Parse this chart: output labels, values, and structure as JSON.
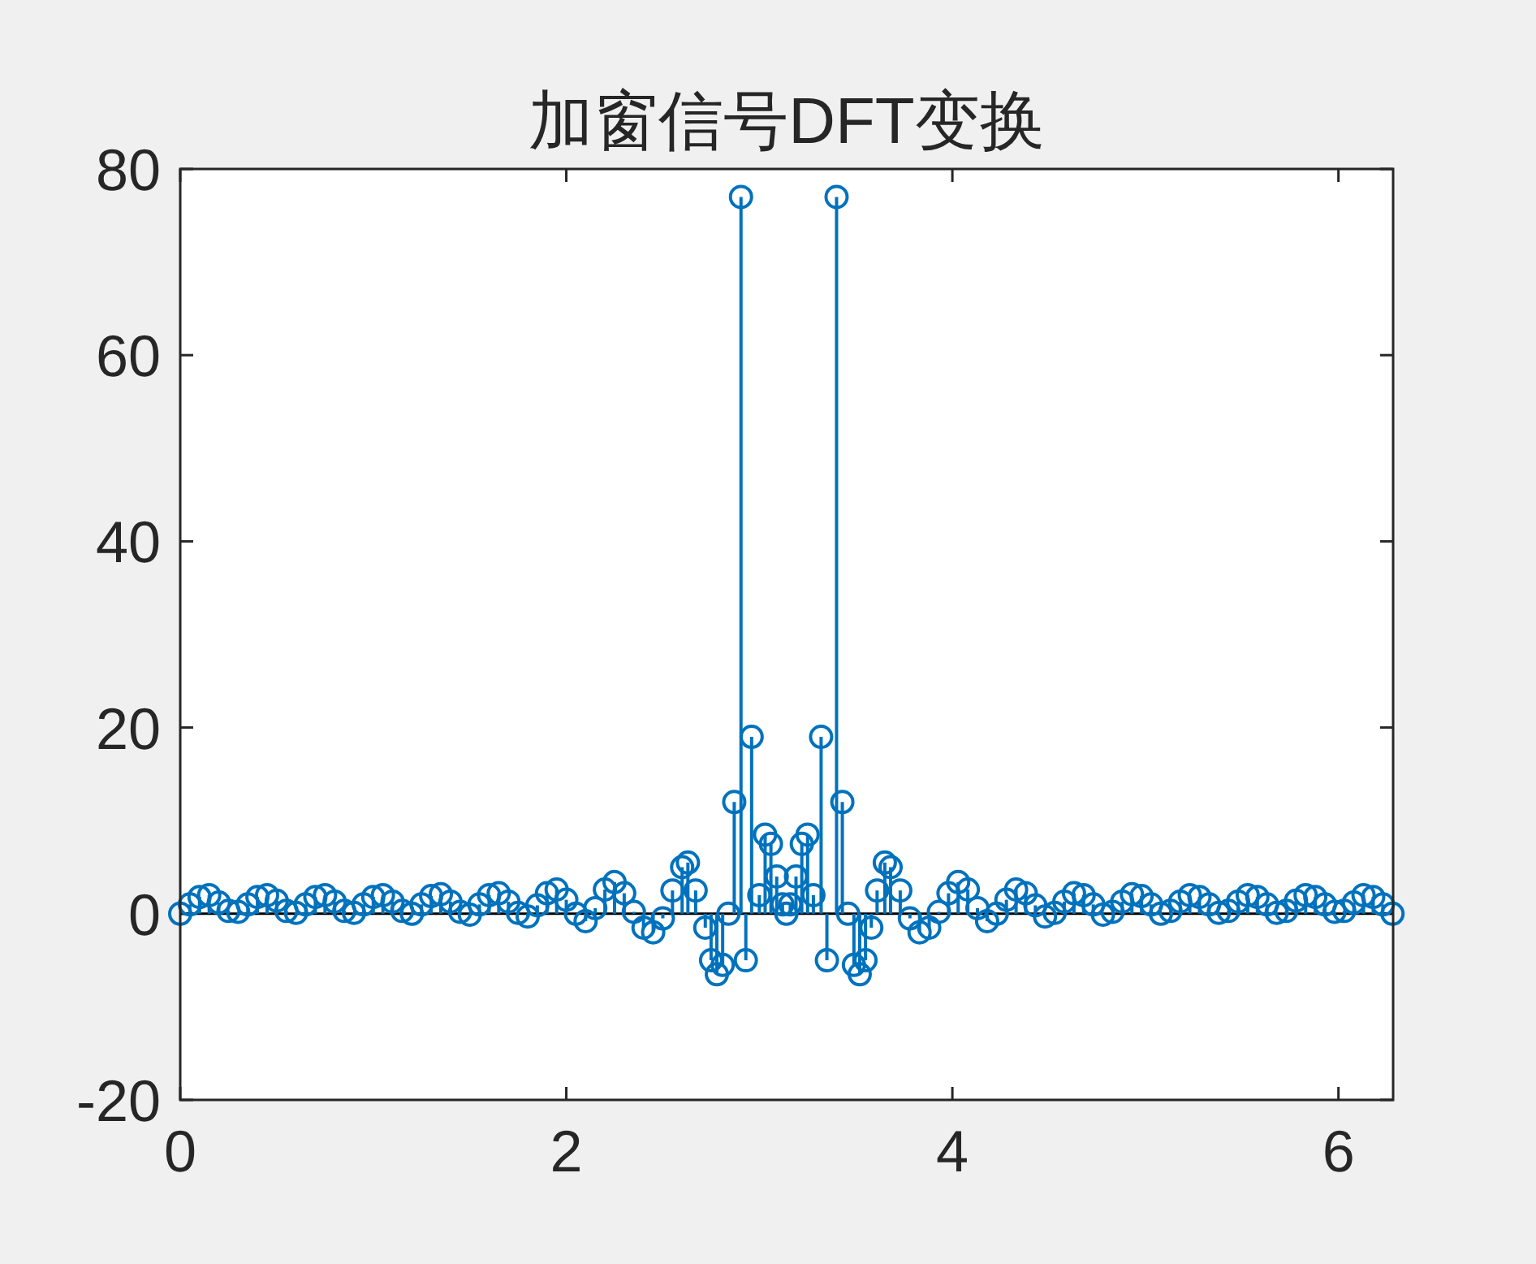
{
  "chart_data": {
    "type": "lollipop",
    "title": "加窗信号DFT变换",
    "marker": "circle",
    "xlim": [
      0,
      6.2832
    ],
    "xticks": [
      0,
      2,
      4,
      6
    ],
    "ylim": [
      -20,
      80
    ],
    "yticks": [
      -20,
      0,
      20,
      40,
      60,
      80
    ],
    "series": [
      {
        "color": "#0072bd",
        "x": [
          0,
          0.05,
          0.1,
          0.15,
          0.2,
          0.25,
          0.3,
          0.35,
          0.4,
          0.45,
          0.5,
          0.55,
          0.6,
          0.65,
          0.7,
          0.75,
          0.8,
          0.85,
          0.9,
          0.95,
          1.0,
          1.05,
          1.1,
          1.15,
          1.2,
          1.25,
          1.3,
          1.35,
          1.4,
          1.45,
          1.5,
          1.55,
          1.6,
          1.65,
          1.7,
          1.75,
          1.8,
          1.85,
          1.9,
          1.95,
          2.0,
          2.05,
          2.1,
          2.15,
          2.2,
          2.25,
          2.3,
          2.35,
          2.4,
          2.45,
          2.5,
          2.55,
          2.6,
          2.63,
          2.67,
          2.72,
          2.75,
          2.78,
          2.81,
          2.84,
          2.87,
          2.905,
          2.93,
          2.96,
          3.0,
          3.03,
          3.06,
          3.09,
          3.12,
          3.14,
          3.16,
          3.19,
          3.22,
          3.25,
          3.28,
          3.32,
          3.35,
          3.4,
          3.43,
          3.46,
          3.49,
          3.52,
          3.55,
          3.58,
          3.61,
          3.65,
          3.68,
          3.73,
          3.78,
          3.83,
          3.88,
          3.93,
          3.98,
          4.03,
          4.08,
          4.13,
          4.18,
          4.23,
          4.28,
          4.33,
          4.38,
          4.43,
          4.48,
          4.53,
          4.58,
          4.63,
          4.68,
          4.73,
          4.78,
          4.83,
          4.88,
          4.93,
          4.98,
          5.03,
          5.08,
          5.13,
          5.18,
          5.23,
          5.28,
          5.33,
          5.38,
          5.43,
          5.48,
          5.53,
          5.58,
          5.63,
          5.68,
          5.73,
          5.78,
          5.83,
          5.88,
          5.93,
          5.98,
          6.03,
          6.08,
          6.13,
          6.18,
          6.23,
          6.28
        ],
        "values": [
          0,
          1,
          1.8,
          2,
          1.2,
          0.3,
          0.2,
          1,
          1.8,
          2,
          1.4,
          0.3,
          0.1,
          1,
          1.8,
          2,
          1.3,
          0.3,
          0.1,
          1,
          1.8,
          2,
          1.3,
          0.3,
          0,
          1,
          1.9,
          2.1,
          1.3,
          0.2,
          -0.1,
          1,
          2,
          2.2,
          1.3,
          0.1,
          -0.3,
          0.9,
          2.2,
          2.6,
          1.5,
          0,
          -0.8,
          0.6,
          2.6,
          3.4,
          2.2,
          0.2,
          -1.5,
          -2,
          -0.5,
          2.5,
          5,
          5.5,
          2.5,
          -1.5,
          -5,
          -6.5,
          -5.5,
          0,
          12,
          77,
          -5,
          19,
          2,
          8.5,
          7.5,
          4,
          1,
          0,
          1,
          4,
          7.5,
          8.5,
          2,
          19,
          -5,
          77,
          12,
          0,
          -5.5,
          -6.5,
          -5,
          -1.5,
          2.5,
          5.5,
          5,
          2.5,
          -0.5,
          -2,
          -1.5,
          0.2,
          2.2,
          3.4,
          2.6,
          0.6,
          -0.8,
          0,
          1.5,
          2.6,
          2.2,
          0.9,
          -0.3,
          0.1,
          1.3,
          2.2,
          2,
          1,
          -0.1,
          0.2,
          1.3,
          2.1,
          1.9,
          1,
          0,
          0.3,
          1.3,
          2,
          1.8,
          1,
          0.1,
          0.3,
          1.3,
          2,
          1.8,
          1,
          0.1,
          0.3,
          1.4,
          2,
          1.8,
          1,
          0.2,
          0.3,
          1.2,
          2,
          1.8,
          1,
          0
        ]
      }
    ]
  }
}
